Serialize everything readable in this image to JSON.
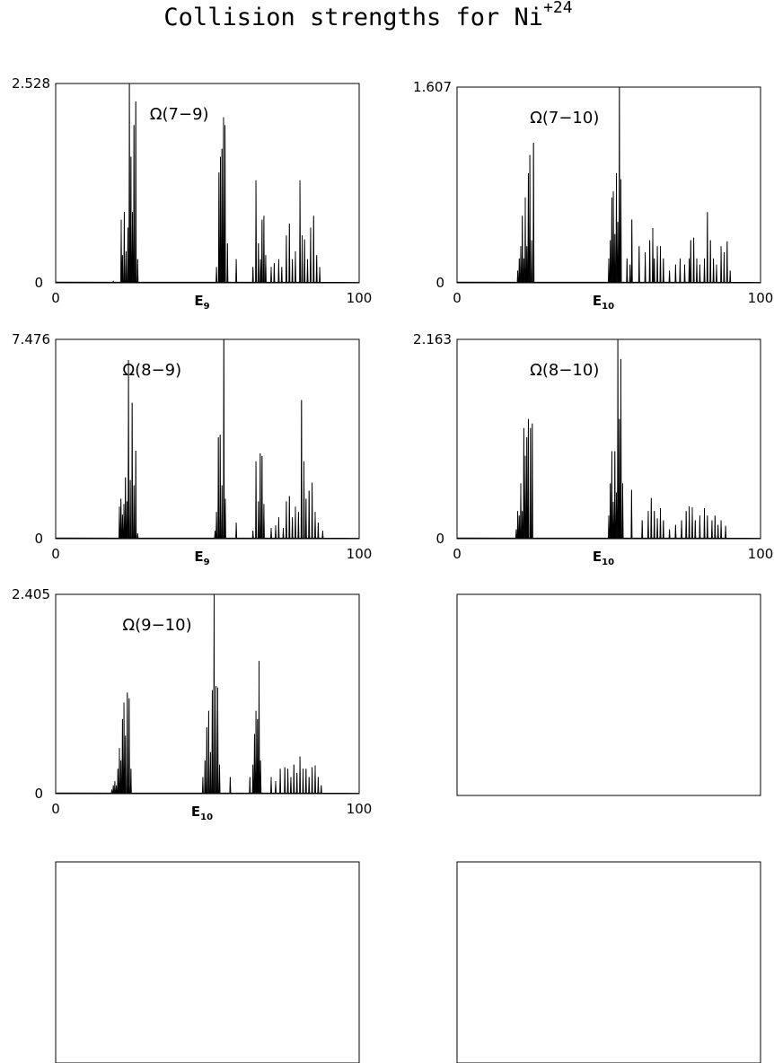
{
  "figure": {
    "title_main": "Collision strengths for Ni",
    "title_sup": "+24"
  },
  "chart_data": [
    {
      "type": "line",
      "label": "Ω(7−9)",
      "xlabel_base": "E",
      "xlabel_sub": "9",
      "xlim": [
        0,
        100
      ],
      "x_tick_labels": [
        "0",
        "100"
      ],
      "ylim": [
        0,
        2.528
      ],
      "y_tick_labels": [
        "0",
        "2.528"
      ],
      "peaks": [
        [
          19,
          0.02
        ],
        [
          21.6,
          0.8
        ],
        [
          22.0,
          0.35
        ],
        [
          22.6,
          0.9
        ],
        [
          23.2,
          0.4
        ],
        [
          23.8,
          0.7
        ],
        [
          24.3,
          2.528
        ],
        [
          24.8,
          1.6
        ],
        [
          25.3,
          0.9
        ],
        [
          25.8,
          2.0
        ],
        [
          26.4,
          2.3
        ],
        [
          27.0,
          0.3
        ],
        [
          53.0,
          0.2
        ],
        [
          53.8,
          1.4
        ],
        [
          54.3,
          1.6
        ],
        [
          54.8,
          1.7
        ],
        [
          55.3,
          2.1
        ],
        [
          55.8,
          2.0
        ],
        [
          56.6,
          0.5
        ],
        [
          59.5,
          0.3
        ],
        [
          65.0,
          0.2
        ],
        [
          66.0,
          1.3
        ],
        [
          66.8,
          0.5
        ],
        [
          67.5,
          0.3
        ],
        [
          68.0,
          0.8
        ],
        [
          68.6,
          0.85
        ],
        [
          69.2,
          0.35
        ],
        [
          71.0,
          0.2
        ],
        [
          72.0,
          0.25
        ],
        [
          73.5,
          0.3
        ],
        [
          74.5,
          0.2
        ],
        [
          76.0,
          0.6
        ],
        [
          77.0,
          0.75
        ],
        [
          78.0,
          0.3
        ],
        [
          79.0,
          0.4
        ],
        [
          80.5,
          1.3
        ],
        [
          81.2,
          0.6
        ],
        [
          82.0,
          0.55
        ],
        [
          83.0,
          0.3
        ],
        [
          84.0,
          0.7
        ],
        [
          85.0,
          0.85
        ],
        [
          86.0,
          0.35
        ],
        [
          87.0,
          0.2
        ]
      ]
    },
    {
      "type": "line",
      "label": "Ω(7−10)",
      "xlabel_base": "E",
      "xlabel_sub": "10",
      "xlim": [
        0,
        100
      ],
      "x_tick_labels": [
        "0",
        "100"
      ],
      "ylim": [
        0,
        1.607
      ],
      "y_tick_labels": [
        "0",
        "1.607"
      ],
      "peaks": [
        [
          20.0,
          0.1
        ],
        [
          20.5,
          0.2
        ],
        [
          21.0,
          0.3
        ],
        [
          21.5,
          0.55
        ],
        [
          22.0,
          0.2
        ],
        [
          22.5,
          0.7
        ],
        [
          23.0,
          0.3
        ],
        [
          23.5,
          0.9
        ],
        [
          24.0,
          1.05
        ],
        [
          24.6,
          0.35
        ],
        [
          25.2,
          1.15
        ],
        [
          50.0,
          0.2
        ],
        [
          50.5,
          0.35
        ],
        [
          51.0,
          0.7
        ],
        [
          51.5,
          0.75
        ],
        [
          52.0,
          0.4
        ],
        [
          52.5,
          0.9
        ],
        [
          53.0,
          0.5
        ],
        [
          53.5,
          1.607
        ],
        [
          54.0,
          0.85
        ],
        [
          56.0,
          0.2
        ],
        [
          57.0,
          0.15
        ],
        [
          57.6,
          0.52
        ],
        [
          60.0,
          0.3
        ],
        [
          62.0,
          0.25
        ],
        [
          63.5,
          0.35
        ],
        [
          64.5,
          0.45
        ],
        [
          65.0,
          0.2
        ],
        [
          66.0,
          0.3
        ],
        [
          67.0,
          0.3
        ],
        [
          68.0,
          0.2
        ],
        [
          70.0,
          0.1
        ],
        [
          72.0,
          0.15
        ],
        [
          73.5,
          0.2
        ],
        [
          75.0,
          0.15
        ],
        [
          76.5,
          0.2
        ],
        [
          77.0,
          0.35
        ],
        [
          78.0,
          0.37
        ],
        [
          79.0,
          0.2
        ],
        [
          80.0,
          0.15
        ],
        [
          81.5,
          0.2
        ],
        [
          82.5,
          0.58
        ],
        [
          83.5,
          0.35
        ],
        [
          84.5,
          0.2
        ],
        [
          85.5,
          0.15
        ],
        [
          87.0,
          0.3
        ],
        [
          88.0,
          0.25
        ],
        [
          89.0,
          0.34
        ],
        [
          90.0,
          0.1
        ]
      ]
    },
    {
      "type": "line",
      "label": "Ω(8−9)",
      "xlabel_base": "E",
      "xlabel_sub": "9",
      "xlim": [
        0,
        100
      ],
      "x_tick_labels": [
        "0",
        "100"
      ],
      "ylim": [
        0,
        7.476
      ],
      "y_tick_labels": [
        "0",
        "7.476"
      ],
      "peaks": [
        [
          19,
          0.02
        ],
        [
          21.0,
          1.2
        ],
        [
          21.5,
          1.5
        ],
        [
          22.0,
          0.9
        ],
        [
          22.5,
          1.3
        ],
        [
          23.0,
          2.3
        ],
        [
          23.5,
          1.4
        ],
        [
          24.0,
          6.7
        ],
        [
          24.6,
          2.2
        ],
        [
          25.2,
          5.1
        ],
        [
          25.8,
          2.0
        ],
        [
          26.4,
          3.3
        ],
        [
          27.0,
          0.2
        ],
        [
          52.5,
          0.3
        ],
        [
          53.0,
          1.0
        ],
        [
          53.6,
          3.8
        ],
        [
          54.2,
          3.9
        ],
        [
          54.8,
          2.0
        ],
        [
          55.4,
          7.476
        ],
        [
          55.9,
          1.5
        ],
        [
          59.5,
          0.6
        ],
        [
          65.0,
          0.3
        ],
        [
          66.0,
          2.9
        ],
        [
          66.8,
          1.4
        ],
        [
          67.4,
          3.2
        ],
        [
          68.0,
          3.1
        ],
        [
          68.6,
          1.3
        ],
        [
          71.0,
          0.4
        ],
        [
          72.5,
          0.5
        ],
        [
          73.5,
          0.8
        ],
        [
          75.0,
          0.4
        ],
        [
          76.0,
          1.4
        ],
        [
          77.0,
          1.6
        ],
        [
          78.0,
          0.8
        ],
        [
          79.0,
          1.2
        ],
        [
          80.0,
          1.0
        ],
        [
          81.0,
          5.2
        ],
        [
          81.8,
          2.9
        ],
        [
          82.5,
          1.5
        ],
        [
          83.5,
          1.8
        ],
        [
          84.5,
          2.1
        ],
        [
          85.5,
          1.0
        ],
        [
          86.5,
          0.6
        ],
        [
          88.0,
          0.3
        ]
      ]
    },
    {
      "type": "line",
      "label": "Ω(8−10)",
      "xlabel_base": "E",
      "xlabel_sub": "10",
      "xlim": [
        0,
        100
      ],
      "x_tick_labels": [
        "0",
        "100"
      ],
      "ylim": [
        0,
        2.163
      ],
      "y_tick_labels": [
        "0",
        "2.163"
      ],
      "peaks": [
        [
          19.5,
          0.1
        ],
        [
          20.0,
          0.3
        ],
        [
          20.5,
          0.25
        ],
        [
          21.0,
          0.6
        ],
        [
          21.5,
          0.3
        ],
        [
          22.0,
          1.2
        ],
        [
          22.5,
          0.9
        ],
        [
          23.0,
          1.1
        ],
        [
          23.5,
          1.3
        ],
        [
          24.2,
          1.2
        ],
        [
          24.8,
          1.25
        ],
        [
          50.0,
          0.25
        ],
        [
          50.5,
          0.6
        ],
        [
          51.0,
          0.95
        ],
        [
          51.5,
          0.4
        ],
        [
          52.0,
          0.95
        ],
        [
          52.5,
          0.5
        ],
        [
          53.0,
          2.163
        ],
        [
          53.5,
          1.3
        ],
        [
          54.0,
          1.95
        ],
        [
          54.6,
          0.6
        ],
        [
          57.5,
          0.53
        ],
        [
          61.0,
          0.2
        ],
        [
          63.0,
          0.3
        ],
        [
          64.0,
          0.44
        ],
        [
          65.0,
          0.3
        ],
        [
          66.0,
          0.22
        ],
        [
          67.0,
          0.33
        ],
        [
          68.0,
          0.2
        ],
        [
          70.0,
          0.1
        ],
        [
          72.0,
          0.15
        ],
        [
          74.0,
          0.2
        ],
        [
          75.5,
          0.3
        ],
        [
          76.5,
          0.35
        ],
        [
          77.5,
          0.34
        ],
        [
          78.5,
          0.2
        ],
        [
          80.0,
          0.25
        ],
        [
          81.5,
          0.33
        ],
        [
          82.5,
          0.25
        ],
        [
          84.0,
          0.2
        ],
        [
          85.0,
          0.25
        ],
        [
          86.0,
          0.15
        ],
        [
          87.0,
          0.2
        ],
        [
          88.5,
          0.14
        ]
      ]
    },
    {
      "type": "line",
      "label": "Ω(9−10)",
      "xlabel_base": "E",
      "xlabel_sub": "10",
      "xlim": [
        0,
        100
      ],
      "x_tick_labels": [
        "0",
        "100"
      ],
      "ylim": [
        0,
        2.405
      ],
      "y_tick_labels": [
        "0",
        "2.405"
      ],
      "peaks": [
        [
          18.5,
          0.05
        ],
        [
          19.0,
          0.1
        ],
        [
          19.5,
          0.15
        ],
        [
          20.0,
          0.1
        ],
        [
          20.5,
          0.3
        ],
        [
          21.0,
          0.55
        ],
        [
          21.5,
          0.4
        ],
        [
          22.0,
          0.9
        ],
        [
          22.5,
          1.1
        ],
        [
          23.0,
          0.7
        ],
        [
          23.6,
          1.22
        ],
        [
          24.2,
          1.15
        ],
        [
          24.8,
          0.3
        ],
        [
          48.5,
          0.2
        ],
        [
          49.2,
          0.4
        ],
        [
          49.8,
          0.8
        ],
        [
          50.4,
          1.0
        ],
        [
          51.0,
          0.5
        ],
        [
          51.6,
          1.25
        ],
        [
          52.2,
          2.405
        ],
        [
          52.8,
          1.3
        ],
        [
          53.4,
          1.28
        ],
        [
          54.0,
          0.35
        ],
        [
          57.5,
          0.2
        ],
        [
          64.0,
          0.2
        ],
        [
          65.0,
          0.35
        ],
        [
          65.5,
          0.72
        ],
        [
          66.0,
          1.0
        ],
        [
          66.5,
          0.9
        ],
        [
          67.0,
          1.6
        ],
        [
          67.5,
          0.4
        ],
        [
          71.0,
          0.2
        ],
        [
          72.5,
          0.15
        ],
        [
          74.0,
          0.3
        ],
        [
          75.5,
          0.32
        ],
        [
          76.5,
          0.3
        ],
        [
          77.5,
          0.2
        ],
        [
          78.5,
          0.35
        ],
        [
          79.5,
          0.25
        ],
        [
          80.5,
          0.45
        ],
        [
          81.5,
          0.3
        ],
        [
          82.5,
          0.3
        ],
        [
          83.5,
          0.2
        ],
        [
          84.5,
          0.32
        ],
        [
          85.5,
          0.34
        ],
        [
          86.5,
          0.2
        ],
        [
          87.5,
          0.1
        ]
      ]
    },
    {
      "type": "line",
      "label": "",
      "empty": true
    },
    {
      "type": "line",
      "label": "",
      "empty": true
    },
    {
      "type": "line",
      "label": "",
      "empty": true
    }
  ]
}
